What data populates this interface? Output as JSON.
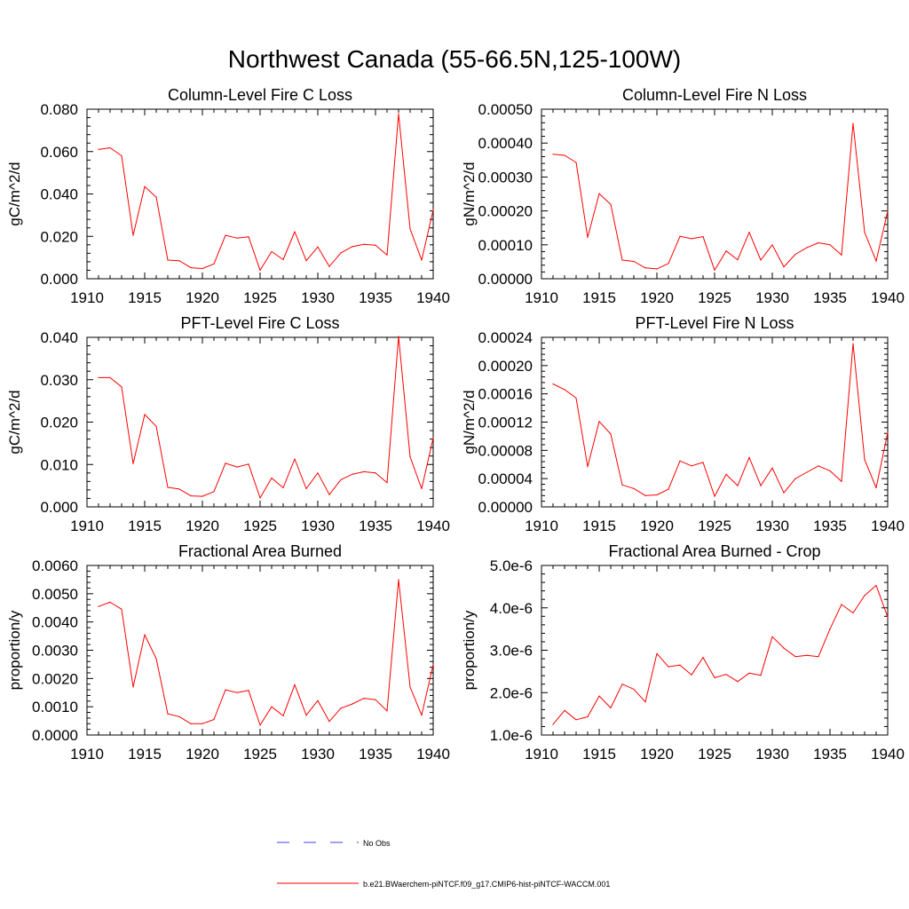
{
  "figure": {
    "title": "Northwest Canada (55-66.5N,125-100W)"
  },
  "colors": {
    "model_line": "#ff0000",
    "obs_line": "#3c3cff",
    "axes": "#000000"
  },
  "legend": {
    "entries": [
      {
        "label": "No Obs",
        "style": "dashed",
        "color": "#3c3cff"
      },
      {
        "label": "b.e21.BWaerchem-piNTCF.f09_g17.CMIP6-hist-piNTCF-WACCM.001",
        "style": "solid",
        "color": "#ff0000"
      }
    ]
  },
  "chart_data": [
    {
      "type": "line",
      "title": "Column-Level Fire C Loss",
      "xlabel": "",
      "ylabel": "gC/m^2/d",
      "xlim": [
        1910,
        1940
      ],
      "ylim": [
        0,
        0.08
      ],
      "xticks": [
        1910,
        1915,
        1920,
        1925,
        1930,
        1935,
        1940
      ],
      "yticks": [
        0,
        0.02,
        0.04,
        0.06,
        0.08
      ],
      "yticklabels": [
        "0.000",
        "0.020",
        "0.040",
        "0.060",
        "0.080"
      ],
      "x": [
        1911,
        1912,
        1913,
        1914,
        1915,
        1916,
        1917,
        1918,
        1919,
        1920,
        1921,
        1922,
        1923,
        1924,
        1925,
        1926,
        1927,
        1928,
        1929,
        1930,
        1931,
        1932,
        1933,
        1934,
        1935,
        1936,
        1937,
        1938,
        1939,
        1940
      ],
      "series": [
        {
          "values": [
            0.061,
            0.0618,
            0.058,
            0.0205,
            0.0435,
            0.0385,
            0.0088,
            0.0085,
            0.0052,
            0.0048,
            0.007,
            0.0205,
            0.0192,
            0.0198,
            0.004,
            0.0128,
            0.009,
            0.0222,
            0.0085,
            0.015,
            0.0058,
            0.0122,
            0.0152,
            0.0162,
            0.0158,
            0.0112,
            0.0778,
            0.0235,
            0.0088,
            0.0325
          ]
        }
      ]
    },
    {
      "type": "line",
      "title": "Column-Level Fire N Loss",
      "xlabel": "",
      "ylabel": "gN/m^2/d",
      "xlim": [
        1910,
        1940
      ],
      "ylim": [
        0,
        0.0005
      ],
      "xticks": [
        1910,
        1915,
        1920,
        1925,
        1930,
        1935,
        1940
      ],
      "yticks": [
        0,
        0.0001,
        0.0002,
        0.0003,
        0.0004,
        0.0005
      ],
      "yticklabels": [
        "0.00000",
        "0.00010",
        "0.00020",
        "0.00030",
        "0.00040",
        "0.00050"
      ],
      "x": [
        1911,
        1912,
        1913,
        1914,
        1915,
        1916,
        1917,
        1918,
        1919,
        1920,
        1921,
        1922,
        1923,
        1924,
        1925,
        1926,
        1927,
        1928,
        1929,
        1930,
        1931,
        1932,
        1933,
        1934,
        1935,
        1936,
        1937,
        1938,
        1939,
        1940
      ],
      "series": [
        {
          "values": [
            0.000367,
            0.000364,
            0.000343,
            0.000122,
            0.000251,
            0.000219,
            5.5e-05,
            5.1e-05,
            3.2e-05,
            2.9e-05,
            4.5e-05,
            0.000125,
            0.000118,
            0.000124,
            2.5e-05,
            8.2e-05,
            5.6e-05,
            0.000137,
            5.5e-05,
            0.0001,
            3.5e-05,
            7.2e-05,
            9.2e-05,
            0.000106,
            0.0001,
            7e-05,
            0.000458,
            0.000137,
            5.2e-05,
            0.0002
          ]
        }
      ]
    },
    {
      "type": "line",
      "title": "PFT-Level Fire C Loss",
      "xlabel": "",
      "ylabel": "gC/m^2/d",
      "xlim": [
        1910,
        1940
      ],
      "ylim": [
        0,
        0.04
      ],
      "xticks": [
        1910,
        1915,
        1920,
        1925,
        1930,
        1935,
        1940
      ],
      "yticks": [
        0,
        0.01,
        0.02,
        0.03,
        0.04
      ],
      "yticklabels": [
        "0.000",
        "0.010",
        "0.020",
        "0.030",
        "0.040"
      ],
      "x": [
        1911,
        1912,
        1913,
        1914,
        1915,
        1916,
        1917,
        1918,
        1919,
        1920,
        1921,
        1922,
        1923,
        1924,
        1925,
        1926,
        1927,
        1928,
        1929,
        1930,
        1931,
        1932,
        1933,
        1934,
        1935,
        1936,
        1937,
        1938,
        1939,
        1940
      ],
      "series": [
        {
          "values": [
            0.0305,
            0.0305,
            0.0283,
            0.0102,
            0.0218,
            0.019,
            0.0046,
            0.0042,
            0.0026,
            0.0025,
            0.0036,
            0.0103,
            0.0094,
            0.0101,
            0.0021,
            0.0068,
            0.0045,
            0.0113,
            0.0043,
            0.008,
            0.0029,
            0.0064,
            0.0077,
            0.0083,
            0.008,
            0.0057,
            0.0402,
            0.0118,
            0.0043,
            0.0163
          ]
        }
      ]
    },
    {
      "type": "line",
      "title": "PFT-Level Fire N Loss",
      "xlabel": "",
      "ylabel": "gN/m^2/d",
      "xlim": [
        1910,
        1940
      ],
      "ylim": [
        0,
        0.00024
      ],
      "xticks": [
        1910,
        1915,
        1920,
        1925,
        1930,
        1935,
        1940
      ],
      "yticks": [
        0,
        4e-05,
        8e-05,
        0.00012,
        0.00016,
        0.0002,
        0.00024
      ],
      "yticklabels": [
        "0.00000",
        "0.00004",
        "0.00008",
        "0.00012",
        "0.00016",
        "0.00020",
        "0.00024"
      ],
      "x": [
        1911,
        1912,
        1913,
        1914,
        1915,
        1916,
        1917,
        1918,
        1919,
        1920,
        1921,
        1922,
        1923,
        1924,
        1925,
        1926,
        1927,
        1928,
        1929,
        1930,
        1931,
        1932,
        1933,
        1934,
        1935,
        1936,
        1937,
        1938,
        1939,
        1940
      ],
      "series": [
        {
          "values": [
            0.000174,
            0.000166,
            0.000154,
            5.7e-05,
            0.000121,
            0.000103,
            3.1e-05,
            2.6e-05,
            1.6e-05,
            1.7e-05,
            2.5e-05,
            6.5e-05,
            5.8e-05,
            6.3e-05,
            1.5e-05,
            4.6e-05,
            3e-05,
            7e-05,
            3e-05,
            5.5e-05,
            2e-05,
            4e-05,
            4.9e-05,
            5.8e-05,
            5.1e-05,
            3.6e-05,
            0.000231,
            6.7e-05,
            2.7e-05,
            0.000105
          ]
        }
      ]
    },
    {
      "type": "line",
      "title": "Fractional Area Burned",
      "xlabel": "",
      "ylabel": "proportion/y",
      "xlim": [
        1910,
        1940
      ],
      "ylim": [
        0,
        0.006
      ],
      "xticks": [
        1910,
        1915,
        1920,
        1925,
        1930,
        1935,
        1940
      ],
      "yticks": [
        0,
        0.001,
        0.002,
        0.003,
        0.004,
        0.005,
        0.006
      ],
      "yticklabels": [
        "0.0000",
        "0.0010",
        "0.0020",
        "0.0030",
        "0.0040",
        "0.0050",
        "0.0060"
      ],
      "x": [
        1911,
        1912,
        1913,
        1914,
        1915,
        1916,
        1917,
        1918,
        1919,
        1920,
        1921,
        1922,
        1923,
        1924,
        1925,
        1926,
        1927,
        1928,
        1929,
        1930,
        1931,
        1932,
        1933,
        1934,
        1935,
        1936,
        1937,
        1938,
        1939,
        1940
      ],
      "series": [
        {
          "values": [
            0.00455,
            0.0047,
            0.00445,
            0.0017,
            0.00355,
            0.0027,
            0.00075,
            0.00065,
            0.0004,
            0.0004,
            0.00055,
            0.0016,
            0.0015,
            0.00158,
            0.00035,
            0.001,
            0.00068,
            0.00178,
            0.0007,
            0.00122,
            0.00048,
            0.00095,
            0.0011,
            0.0013,
            0.00125,
            0.00085,
            0.0055,
            0.0017,
            0.0007,
            0.0025
          ]
        }
      ]
    },
    {
      "type": "line",
      "title": "Fractional Area Burned - Crop",
      "xlabel": "",
      "ylabel": "proportion/y",
      "xlim": [
        1910,
        1940
      ],
      "ylim": [
        1e-06,
        5e-06
      ],
      "xticks": [
        1910,
        1915,
        1920,
        1925,
        1930,
        1935,
        1940
      ],
      "yticks": [
        1e-06,
        2e-06,
        3e-06,
        4e-06,
        5e-06
      ],
      "yticklabels": [
        "1.0e-6",
        "2.0e-6",
        "3.0e-6",
        "4.0e-6",
        "5.0e-6"
      ],
      "x": [
        1911,
        1912,
        1913,
        1914,
        1915,
        1916,
        1917,
        1918,
        1919,
        1920,
        1921,
        1922,
        1923,
        1924,
        1925,
        1926,
        1927,
        1928,
        1929,
        1930,
        1931,
        1932,
        1933,
        1934,
        1935,
        1936,
        1937,
        1938,
        1939,
        1940
      ],
      "series": [
        {
          "values": [
            1.25e-06,
            1.58e-06,
            1.36e-06,
            1.43e-06,
            1.92e-06,
            1.64e-06,
            2.2e-06,
            2.08e-06,
            1.78e-06,
            2.92e-06,
            2.61e-06,
            2.65e-06,
            2.42e-06,
            2.83e-06,
            2.35e-06,
            2.43e-06,
            2.26e-06,
            2.46e-06,
            2.41e-06,
            3.32e-06,
            3.05e-06,
            2.85e-06,
            2.88e-06,
            2.85e-06,
            3.5e-06,
            4.08e-06,
            3.88e-06,
            4.29e-06,
            4.53e-06,
            3.78e-06
          ]
        }
      ]
    }
  ]
}
